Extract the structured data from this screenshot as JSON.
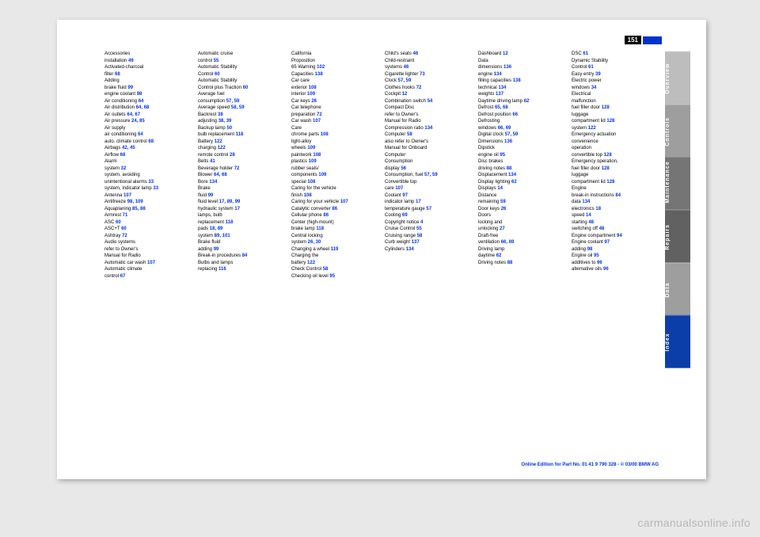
{
  "pageNumber": "151",
  "tabs": [
    {
      "label": "Overview",
      "bg": "#bdbdbd"
    },
    {
      "label": "Controls",
      "bg": "#9e9e9e"
    },
    {
      "label": "Maintenance",
      "bg": "#757575"
    },
    {
      "label": "Repairs",
      "bg": "#616161"
    },
    {
      "label": "Data",
      "bg": "#9e9e9e"
    },
    {
      "label": "Index",
      "bg": "#0b3ea8"
    }
  ],
  "columns": [
    [
      {
        "t": "Accessories",
        "p": ""
      },
      {
        "t": "   installation",
        "p": "49"
      },
      {
        "t": "Activated-charcoal",
        "p": ""
      },
      {
        "t": "   filter",
        "p": "68",
        "pad": 1
      },
      {
        "t": "Adding",
        "p": ""
      },
      {
        "t": "   brake fluid",
        "p": "99"
      },
      {
        "t": "   engine coolant",
        "p": "98"
      },
      {
        "t": "Air conditioning",
        "p": "64"
      },
      {
        "t": "Air distribution",
        "p": "64, 68"
      },
      {
        "t": "Air outlets",
        "p": "64, 67"
      },
      {
        "t": "Air pressure",
        "p": "24, 85"
      },
      {
        "t": "Air supply",
        "p": ""
      },
      {
        "t": "   air conditioning",
        "p": "64"
      },
      {
        "t": "   auto. climate control",
        "p": "68"
      },
      {
        "t": "Airbags",
        "p": "42, 45"
      },
      {
        "t": "Airflow ",
        "p": "68"
      },
      {
        "t": "Alarm",
        "p": ""
      },
      {
        "t": "   system",
        "p": "32"
      },
      {
        "t": "   system, avoiding",
        "p": ""
      },
      {
        "t": "      unintentional alarms",
        "p": "33"
      },
      {
        "t": "   system, indicator lamp",
        "p": "33"
      },
      {
        "t": "Antenna",
        "p": "107"
      },
      {
        "t": "Antifreeze",
        "p": "98, 109"
      },
      {
        "t": "Aquaplaning",
        "p": "85, 88"
      },
      {
        "t": "Armrest",
        "p": "71"
      },
      {
        "t": "ASC",
        "p": "60"
      },
      {
        "t": "ASC+T",
        "p": "60"
      },
      {
        "t": "Ashtray",
        "p": "72"
      },
      {
        "t": "Audio systems",
        "p": ""
      },
      {
        "t": "   refer to Owner's",
        "p": ""
      },
      {
        "t": "   Manual for Radio",
        "p": ""
      },
      {
        "t": "Automatic car wash",
        "p": "107"
      },
      {
        "t": "Automatic climate",
        "p": ""
      },
      {
        "t": "   control",
        "p": "67"
      }
    ],
    [
      {
        "t": "Automatic cruise",
        "p": ""
      },
      {
        "t": "   control",
        "p": "55"
      },
      {
        "t": "Automatic Stability",
        "p": ""
      },
      {
        "t": "   Control",
        "p": "60"
      },
      {
        "t": "Automatic Stability",
        "p": ""
      },
      {
        "t": "   Control plus Traction",
        "p": "60"
      },
      {
        "t": "Average fuel",
        "p": ""
      },
      {
        "t": "   consumption",
        "p": "57, 59"
      },
      {
        "t": "Average speed",
        "p": "58, 59"
      },
      {
        "t": "",
        "p": ""
      },
      {
        "t": "Backrest",
        "p": "38"
      },
      {
        "t": "   adjusting",
        "p": "38, 39"
      },
      {
        "t": "Backup lamp",
        "p": "50"
      },
      {
        "t": "   bulb replacement",
        "p": "118"
      },
      {
        "t": "Battery",
        "p": "122"
      },
      {
        "t": "   charging",
        "p": "122"
      },
      {
        "t": "   remote control",
        "p": "28"
      },
      {
        "t": "Belts",
        "p": "41"
      },
      {
        "t": "Beverage holder",
        "p": "72"
      },
      {
        "t": "Blower",
        "p": "64, 68"
      },
      {
        "t": "Bore",
        "p": "134"
      },
      {
        "t": "Brake",
        "p": ""
      },
      {
        "t": "   fluid",
        "p": "99"
      },
      {
        "t": "   fluid level",
        "p": "17, 89, 99"
      },
      {
        "t": "   hydraulic system",
        "p": "17"
      },
      {
        "t": "   lamps, bulb",
        "p": ""
      },
      {
        "t": "      replacement",
        "p": "118"
      },
      {
        "t": "   pads",
        "p": "18, 89"
      },
      {
        "t": "   system",
        "p": "89, 101"
      },
      {
        "t": "Brake fluid",
        "p": ""
      },
      {
        "t": "   adding",
        "p": "99"
      },
      {
        "t": "Break-in procedures",
        "p": "84"
      },
      {
        "t": "Bulbs and lamps",
        "p": ""
      },
      {
        "t": "   replacing",
        "p": "116"
      }
    ],
    [
      {
        "t": "California",
        "p": ""
      },
      {
        "t": "   Proposition",
        "p": ""
      },
      {
        "t": "   65 Warning",
        "p": "102"
      },
      {
        "t": "Capacities",
        "p": "138"
      },
      {
        "t": "Car care",
        "p": ""
      },
      {
        "t": "   exterior",
        "p": "108"
      },
      {
        "t": "   interior",
        "p": "109"
      },
      {
        "t": "Car keys",
        "p": "26"
      },
      {
        "t": "Car telephone",
        "p": ""
      },
      {
        "t": "   preparation",
        "p": "72"
      },
      {
        "t": "Car wash",
        "p": "107"
      },
      {
        "t": "Care",
        "p": ""
      },
      {
        "t": "   chrome parts",
        "p": "108"
      },
      {
        "t": "   light-alloy",
        "p": ""
      },
      {
        "t": "      wheels",
        "p": "109"
      },
      {
        "t": "   paintwork",
        "p": "108"
      },
      {
        "t": "   plastics",
        "p": "109"
      },
      {
        "t": "   rubber seals/",
        "p": ""
      },
      {
        "t": "      components",
        "p": "109"
      },
      {
        "t": "   special",
        "p": "108"
      },
      {
        "t": "Caring for the vehicle",
        "p": ""
      },
      {
        "t": "   finish",
        "p": "108"
      },
      {
        "t": "Caring for your vehicle",
        "p": "107"
      },
      {
        "t": "Catalytic converter",
        "p": "86"
      },
      {
        "t": "Cellular phone",
        "p": "86"
      },
      {
        "t": "Center (high-mount)",
        "p": ""
      },
      {
        "t": "   brake lamp",
        "p": "118"
      },
      {
        "t": "Central locking",
        "p": ""
      },
      {
        "t": "   system",
        "p": "26, 30"
      },
      {
        "t": "Changing a wheel",
        "p": "119"
      },
      {
        "t": "Charging the",
        "p": ""
      },
      {
        "t": "   battery",
        "p": "122"
      },
      {
        "t": "Check Control",
        "p": "58"
      },
      {
        "t": "Checking oil level",
        "p": "95"
      }
    ],
    [
      {
        "t": "Child's seats",
        "p": "46"
      },
      {
        "t": "Child-restraint",
        "p": ""
      },
      {
        "t": "   systems",
        "p": "46"
      },
      {
        "t": "Cigarette lighter",
        "p": "73"
      },
      {
        "t": "Clock",
        "p": "57, 59"
      },
      {
        "t": "Clothes hooks",
        "p": "72"
      },
      {
        "t": "Cockpit",
        "p": "12"
      },
      {
        "t": "Combination switch",
        "p": "54"
      },
      {
        "t": "Compact Disc",
        "p": ""
      },
      {
        "t": "   refer to Owner's ",
        "p": ""
      },
      {
        "t": "   Manual for Radio",
        "p": ""
      },
      {
        "t": "Compression ratio",
        "p": "134"
      },
      {
        "t": "Computer",
        "p": "58"
      },
      {
        "t": "   also refer to Owner's",
        "p": ""
      },
      {
        "t": "   Manual for Onboard",
        "p": ""
      },
      {
        "t": "   Computer",
        "p": ""
      },
      {
        "t": "Consumption",
        "p": ""
      },
      {
        "t": "   display",
        "p": "56"
      },
      {
        "t": "Consumption, fuel",
        "p": "57, 59"
      },
      {
        "t": "Convertible top",
        "p": ""
      },
      {
        "t": "   care",
        "p": "107"
      },
      {
        "t": "Coolant",
        "p": "97"
      },
      {
        "t": "   indicator lamp",
        "p": "17"
      },
      {
        "t": "   temperature gauge",
        "p": "57"
      },
      {
        "t": "Cooling",
        "p": "69"
      },
      {
        "t": "Copyright notice",
        "p": "4"
      },
      {
        "t": "Cruise Control",
        "p": "55"
      },
      {
        "t": "Cruising range",
        "p": "58"
      },
      {
        "t": "Curb weight",
        "p": "137"
      },
      {
        "t": "Cylinders",
        "p": "134"
      }
    ],
    [
      {
        "t": "Dashboard",
        "p": "12"
      },
      {
        "t": "Data",
        "p": ""
      },
      {
        "t": "   dimensions",
        "p": "136"
      },
      {
        "t": "   engine",
        "p": "134"
      },
      {
        "t": "   filling capacities",
        "p": "138"
      },
      {
        "t": "   technical",
        "p": "134"
      },
      {
        "t": "   weights",
        "p": "137"
      },
      {
        "t": "Daytime driving lamp",
        "p": "62"
      },
      {
        "t": "Defrost",
        "p": "65, 68"
      },
      {
        "t": "Defrost position",
        "p": "66"
      },
      {
        "t": "Defrosting",
        "p": ""
      },
      {
        "t": "   windows",
        "p": "66, 69"
      },
      {
        "t": "Digital clock",
        "p": "57, 59"
      },
      {
        "t": "Dimensions",
        "p": "136"
      },
      {
        "t": "Dipstick",
        "p": ""
      },
      {
        "t": "   engine oil",
        "p": "95"
      },
      {
        "t": "Disc brakes",
        "p": ""
      },
      {
        "t": "   driving notes",
        "p": "88"
      },
      {
        "t": "Displacement",
        "p": "134"
      },
      {
        "t": "Display lighting",
        "p": "62"
      },
      {
        "t": "Displays",
        "p": "14"
      },
      {
        "t": "Distance",
        "p": ""
      },
      {
        "t": "   remaining",
        "p": "59"
      },
      {
        "t": "Door keys",
        "p": "26"
      },
      {
        "t": "Doors",
        "p": ""
      },
      {
        "t": "   locking and",
        "p": ""
      },
      {
        "t": "   unlocking",
        "p": "27"
      },
      {
        "t": "Draft-free",
        "p": ""
      },
      {
        "t": "   ventilation",
        "p": "66, 69"
      },
      {
        "t": "Driving lamp",
        "p": ""
      },
      {
        "t": "   daytime",
        "p": "62"
      },
      {
        "t": "Driving notes",
        "p": "88"
      }
    ],
    [
      {
        "t": "DSC",
        "p": "61"
      },
      {
        "t": "Dynamic Stability",
        "p": ""
      },
      {
        "t": "   Control",
        "p": "61"
      },
      {
        "t": "",
        "p": ""
      },
      {
        "t": "Easy entry",
        "p": "39"
      },
      {
        "t": "Electric power",
        "p": ""
      },
      {
        "t": "   windows",
        "p": "34"
      },
      {
        "t": "Electrical",
        "p": ""
      },
      {
        "t": "   malfunction",
        "p": ""
      },
      {
        "t": "      fuel filler door",
        "p": "128"
      },
      {
        "t": "      luggage ",
        "p": ""
      },
      {
        "t": "         compartment lid",
        "p": "128"
      },
      {
        "t": "   system",
        "p": "122"
      },
      {
        "t": "Emergency actuation",
        "p": ""
      },
      {
        "t": "   convenience",
        "p": ""
      },
      {
        "t": "   operation",
        "p": ""
      },
      {
        "t": "   convertible top",
        "p": "128"
      },
      {
        "t": "Emergency operation,",
        "p": ""
      },
      {
        "t": "   fuel filler door",
        "p": "128"
      },
      {
        "t": "   luggage ",
        "p": ""
      },
      {
        "t": "   compartment lid",
        "p": "128"
      },
      {
        "t": "Engine",
        "p": ""
      },
      {
        "t": "   break-in instructions",
        "p": "84"
      },
      {
        "t": "   data",
        "p": "134"
      },
      {
        "t": "   electronics",
        "p": "18"
      },
      {
        "t": "   speed",
        "p": "14"
      },
      {
        "t": "   starting",
        "p": "48"
      },
      {
        "t": "   switching off",
        "p": "48"
      },
      {
        "t": "Engine compartment",
        "p": "94"
      },
      {
        "t": "Engine coolant",
        "p": "97"
      },
      {
        "t": "   adding",
        "p": "98"
      },
      {
        "t": "Engine oil",
        "p": "95"
      },
      {
        "t": "   additives to",
        "p": "96"
      },
      {
        "t": "   alternative oils",
        "p": "96"
      }
    ]
  ],
  "footer": "Online Edition for Part No. 01 41 9 790 328 - © 03/00 BMW AG",
  "watermark": "carmanualsonline.info"
}
